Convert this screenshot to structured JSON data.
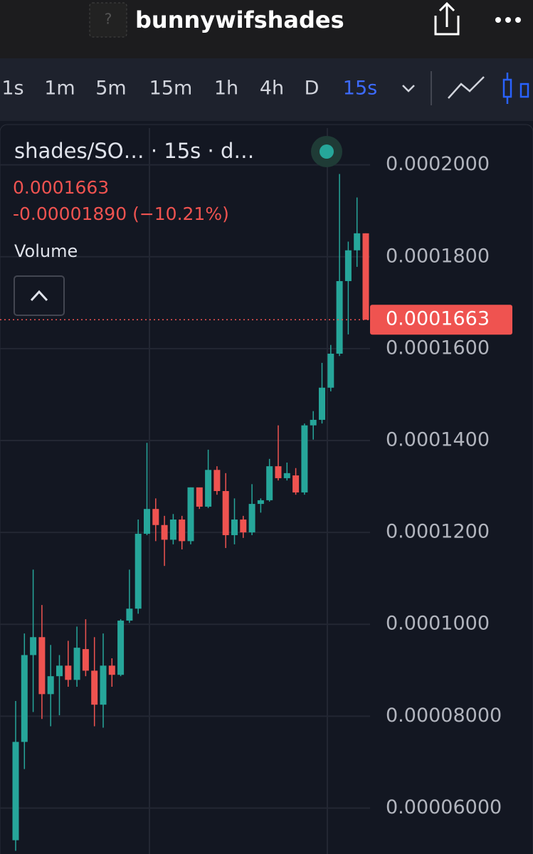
{
  "header": {
    "title": "bunnywifshades"
  },
  "toolbar": {
    "intervals": [
      "1s",
      "1m",
      "5m",
      "15m",
      "1h",
      "4h",
      "D",
      "15s"
    ],
    "active": 7
  },
  "legend": {
    "symbol": "shades/SO…  · 15s · d…",
    "price": "0.0001663",
    "change": "-0.00001890 (−10.21%)",
    "volume": "Volume"
  },
  "chart_data": {
    "type": "candlestick",
    "up_color": "#26a69a",
    "down_color": "#ef5350",
    "open": [
      5.3e-05,
      7.44e-05,
      9.33e-05,
      9.72e-05,
      8.48e-05,
      8.87e-05,
      9.1e-05,
      8.79e-05,
      9.46e-05,
      8.99e-05,
      8.25e-05,
      9.1e-05,
      8.9e-05,
      0.0001008,
      0.0001034,
      0.0001197,
      0.0001251,
      0.0001216,
      0.0001184,
      0.0001228,
      0.0001181,
      0.0001298,
      0.0001256,
      0.0001336,
      0.000129,
      0.0001194,
      0.0001228,
      0.00012,
      0.0001262,
      0.000127,
      0.0001344,
      0.0001318,
      0.0001324,
      0.0001287,
      0.0001433,
      0.0001445,
      0.0001515,
      0.0001589,
      0.0001747,
      0.0001814,
      0.0001851
    ],
    "high": [
      8.33e-05,
      9.8e-05,
      0.0001119,
      0.0001042,
      9.55e-05,
      9.33e-05,
      9.64e-05,
      9.95e-05,
      0.0001011,
      9.72e-05,
      9.8e-05,
      9.26e-05,
      0.0001011,
      0.0001119,
      0.0001228,
      0.0001395,
      0.0001274,
      0.0001236,
      0.000124,
      0.0001236,
      0.0001298,
      0.0001293,
      0.000138,
      0.0001344,
      0.0001329,
      0.0001274,
      0.0001236,
      0.0001305,
      0.0001274,
      0.000136,
      0.0001433,
      0.0001352,
      0.000134,
      0.0001437,
      0.0001464,
      0.0001569,
      0.0001608,
      0.000198,
      0.0001833,
      0.0001929,
      0.0001851
    ],
    "low": [
      5.07e-05,
      6.85e-05,
      8.09e-05,
      7.94e-05,
      7.78e-05,
      8.02e-05,
      8.64e-05,
      8.64e-05,
      8.87e-05,
      7.78e-05,
      7.75e-05,
      8.64e-05,
      8.87e-05,
      0.0001003,
      0.0001023,
      0.0001194,
      0.0001181,
      0.0001127,
      0.0001174,
      0.0001163,
      0.0001174,
      0.0001251,
      0.0001253,
      0.0001282,
      0.0001166,
      0.0001174,
      0.0001188,
      0.0001194,
      0.0001243,
      0.0001267,
      0.0001313,
      0.0001313,
      0.0001282,
      0.0001282,
      0.0001402,
      0.0001437,
      0.0001507,
      0.0001584,
      0.0001631,
      0.0001778,
      0.0001663
    ],
    "close": [
      7.44e-05,
      9.33e-05,
      9.72e-05,
      8.48e-05,
      8.87e-05,
      9.1e-05,
      8.79e-05,
      9.49e-05,
      8.99e-05,
      8.25e-05,
      9.1e-05,
      8.9e-05,
      0.0001008,
      0.0001034,
      0.0001197,
      0.0001251,
      0.0001216,
      0.0001184,
      0.0001228,
      0.0001181,
      0.0001298,
      0.0001256,
      0.0001336,
      0.000129,
      0.0001194,
      0.0001228,
      0.00012,
      0.0001262,
      0.000127,
      0.0001344,
      0.0001318,
      0.0001329,
      0.0001287,
      0.0001433,
      0.0001445,
      0.0001515,
      0.0001589,
      0.0001747,
      0.0001814,
      0.0001851,
      0.0001663
    ],
    "ylim": [
      5e-05,
      0.000208
    ],
    "yticks": [
      {
        "value": 0.0002,
        "label": "0.0002000"
      },
      {
        "value": 0.00018,
        "label": "0.0001800"
      },
      {
        "value": 0.00016,
        "label": "0.0001600"
      },
      {
        "value": 0.00014,
        "label": "0.0001400"
      },
      {
        "value": 0.00012,
        "label": "0.0001200"
      },
      {
        "value": 0.0001,
        "label": "0.0001000"
      },
      {
        "value": 8e-05,
        "label": "0.00008000"
      },
      {
        "value": 6e-05,
        "label": "0.00006000"
      }
    ],
    "last_price": {
      "value": 0.0001663,
      "label": "0.0001663"
    },
    "grid": true
  }
}
